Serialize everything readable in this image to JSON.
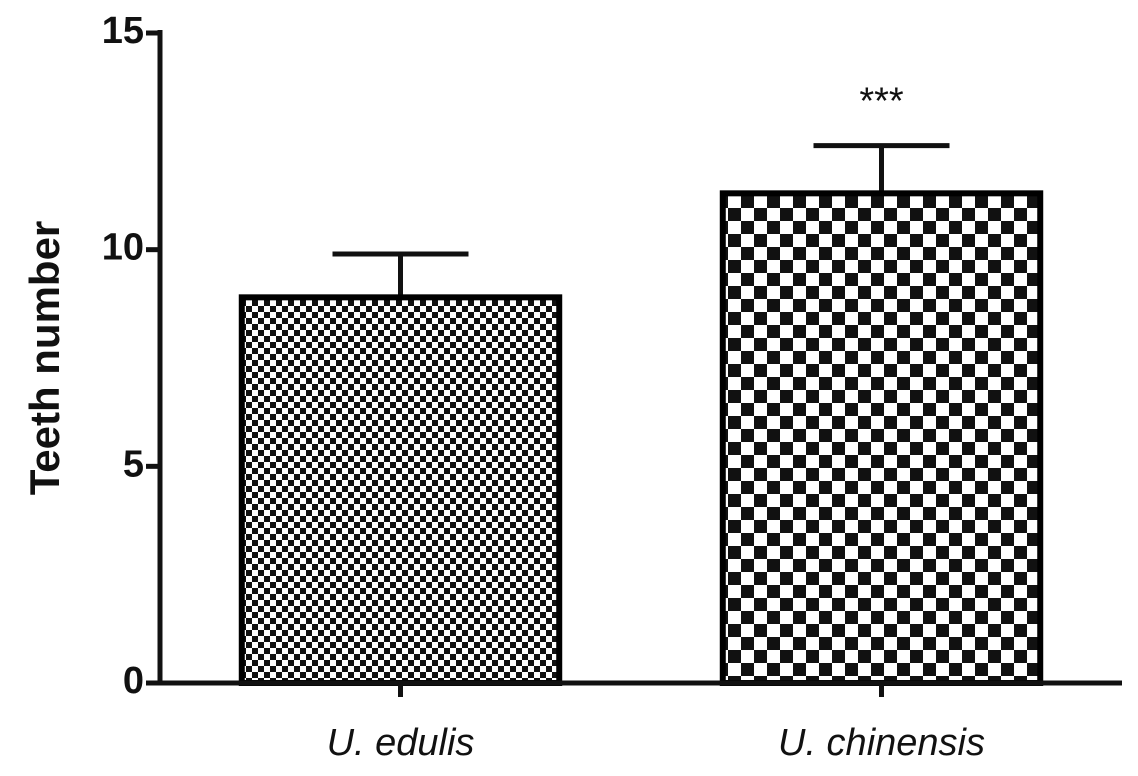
{
  "chart_data": {
    "type": "bar",
    "ylabel": "Teeth number",
    "categories": [
      "U. edulis",
      "U. chinensis"
    ],
    "values": [
      8.9,
      11.3
    ],
    "errors": [
      1.0,
      1.1
    ],
    "color": "#000000",
    "annotations": [
      {
        "text": "***",
        "category": "U. chinensis"
      }
    ],
    "ylim": [
      0,
      15
    ],
    "yticks": [
      0,
      5,
      10,
      15
    ],
    "grid": false
  }
}
